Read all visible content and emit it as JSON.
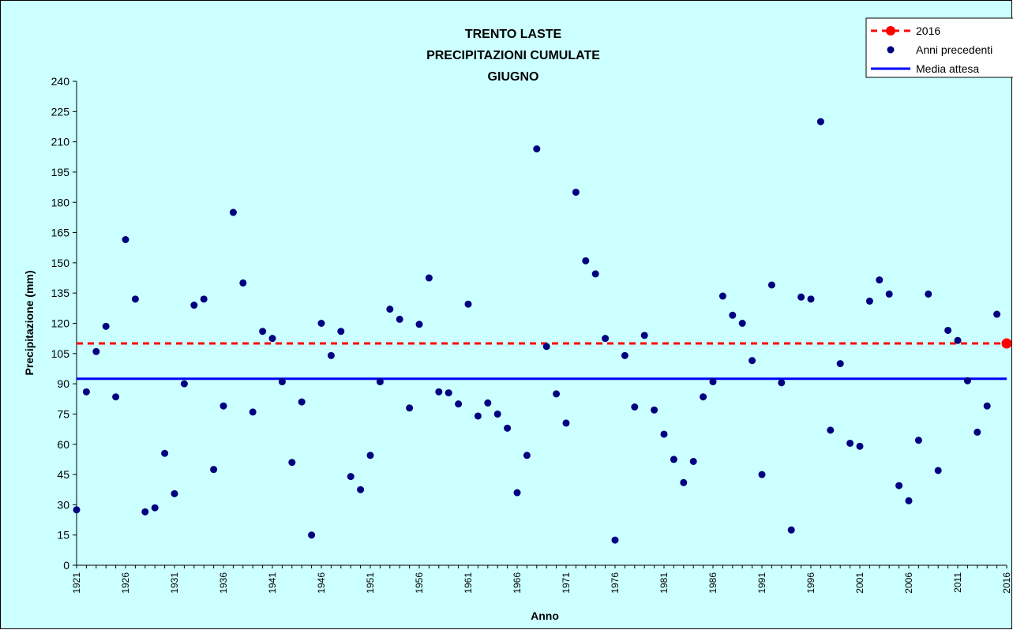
{
  "chart_data": {
    "type": "scatter",
    "title_lines": [
      "TRENTO LASTE",
      "PRECIPITAZIONI CUMULATE",
      "GIUGNO"
    ],
    "xlabel": "Anno",
    "ylabel": "Precipitazione (mm)",
    "ylim": [
      0,
      240
    ],
    "yticks": [
      0,
      15,
      30,
      45,
      60,
      75,
      90,
      105,
      120,
      135,
      150,
      165,
      180,
      195,
      210,
      225,
      240
    ],
    "xlim": [
      1921,
      2016
    ],
    "xticks": [
      1921,
      1926,
      1931,
      1936,
      1941,
      1946,
      1951,
      1956,
      1961,
      1966,
      1971,
      1976,
      1981,
      1986,
      1991,
      1996,
      2001,
      2006,
      2011,
      2016
    ],
    "grid": false,
    "legend_position": "top-right",
    "background_color": "#ccffff",
    "series": [
      {
        "name": "Anni precedenti",
        "color": "#000080",
        "x": [
          1921,
          1922,
          1923,
          1924,
          1925,
          1926,
          1927,
          1928,
          1929,
          1930,
          1931,
          1932,
          1933,
          1934,
          1935,
          1936,
          1937,
          1938,
          1939,
          1940,
          1941,
          1942,
          1943,
          1944,
          1945,
          1946,
          1947,
          1948,
          1949,
          1950,
          1951,
          1952,
          1953,
          1954,
          1955,
          1956,
          1957,
          1958,
          1959,
          1960,
          1961,
          1962,
          1963,
          1964,
          1965,
          1966,
          1967,
          1968,
          1969,
          1970,
          1971,
          1972,
          1973,
          1974,
          1975,
          1976,
          1977,
          1978,
          1979,
          1980,
          1981,
          1982,
          1983,
          1984,
          1985,
          1986,
          1987,
          1988,
          1989,
          1990,
          1991,
          1992,
          1993,
          1994,
          1995,
          1996,
          1997,
          1998,
          1999,
          2000,
          2001,
          2002,
          2003,
          2004,
          2005,
          2006,
          2007,
          2008,
          2009,
          2010,
          2011,
          2012,
          2013,
          2014,
          2015
        ],
        "y": [
          27.5,
          86,
          106,
          118.5,
          83.5,
          161.5,
          132,
          26.5,
          28.5,
          55.5,
          35.5,
          90,
          129,
          132,
          47.5,
          79,
          175,
          140,
          76,
          116,
          112.5,
          91,
          51,
          81,
          15,
          120,
          104,
          116,
          44,
          37.5,
          54.5,
          91,
          127,
          122,
          78,
          119.5,
          142.5,
          86,
          85.5,
          80,
          129.5,
          74,
          80.5,
          75,
          68,
          36,
          54.5,
          206.5,
          108.5,
          85,
          70.5,
          185,
          151,
          144.5,
          112.5,
          12.5,
          104,
          78.5,
          114,
          77,
          65,
          52.5,
          41,
          51.5,
          83.5,
          91,
          133.5,
          124,
          120,
          101.5,
          45,
          139,
          90.5,
          17.5,
          133,
          132,
          220,
          67,
          100,
          60.5,
          59,
          131,
          141.5,
          134.5,
          39.5,
          32,
          62,
          134.5,
          47,
          116.5,
          111.5,
          91.5,
          66,
          79,
          124.5
        ]
      },
      {
        "name": "2016",
        "color": "#ff0000",
        "x": [
          2016
        ],
        "y": [
          110
        ]
      },
      {
        "name": "Media attesa",
        "type": "line",
        "color": "#0000ff",
        "value": 92.5
      }
    ]
  }
}
